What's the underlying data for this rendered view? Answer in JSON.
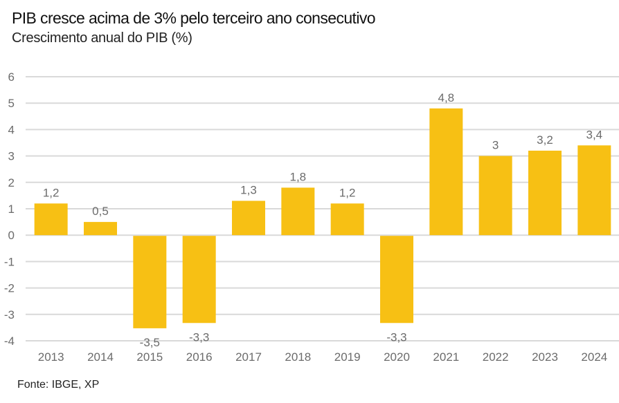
{
  "chart_data": {
    "type": "bar",
    "title": "PIB cresce acima de 3% pelo terceiro ano consecutivo",
    "subtitle": "Crescimento anual do PIB (%)",
    "xlabel": "",
    "ylabel": "",
    "categories": [
      "2013",
      "2014",
      "2015",
      "2016",
      "2017",
      "2018",
      "2019",
      "2020",
      "2021",
      "2022",
      "2023",
      "2024"
    ],
    "values": [
      1.2,
      0.5,
      -3.5,
      -3.3,
      1.3,
      1.8,
      1.2,
      -3.3,
      4.8,
      3.0,
      3.2,
      3.4
    ],
    "data_labels": [
      "1,2",
      "0,5",
      "-3,5",
      "-3,3",
      "1,3",
      "1,8",
      "1,2",
      "-3,3",
      "4,8",
      "3",
      "3,2",
      "3,4"
    ],
    "ylim": [
      -4,
      6
    ],
    "yticks": [
      6,
      5,
      4,
      3,
      2,
      1,
      0,
      -1,
      -2,
      -3,
      -4
    ],
    "ytick_labels": [
      "6",
      "5",
      "4",
      "3",
      "2",
      "1",
      "0",
      "-1",
      "-2",
      "-3",
      "-4"
    ],
    "grid": true,
    "legend": "none",
    "bar_color": "#F7C014",
    "grid_color": "#D9D9D9",
    "source": "Fonte: IBGE, XP"
  }
}
